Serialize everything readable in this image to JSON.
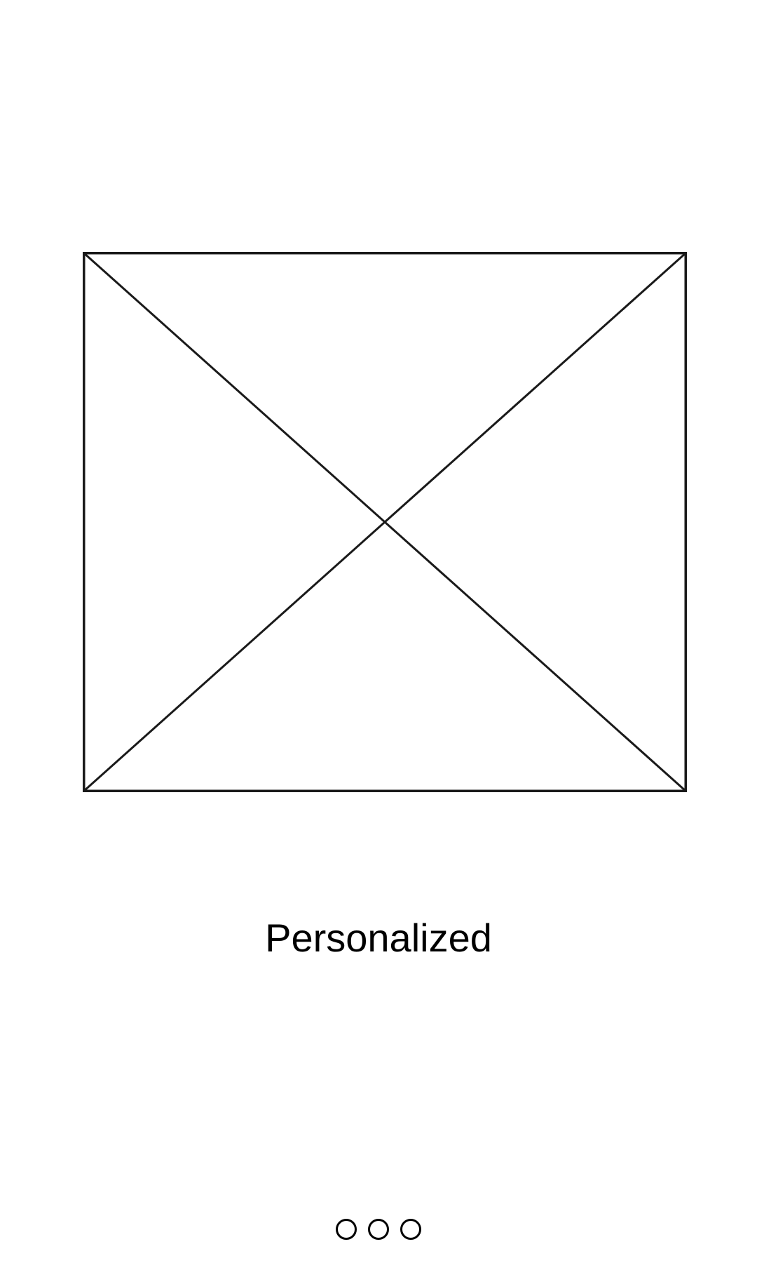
{
  "screen": {
    "title": "Personalized",
    "image": {
      "icon": "image-placeholder-icon",
      "stroke_color": "#1a1a1a"
    },
    "pager": {
      "page_count": 3,
      "dots": [
        {
          "icon": "page-indicator-dot"
        },
        {
          "icon": "page-indicator-dot"
        },
        {
          "icon": "page-indicator-dot"
        }
      ]
    }
  }
}
